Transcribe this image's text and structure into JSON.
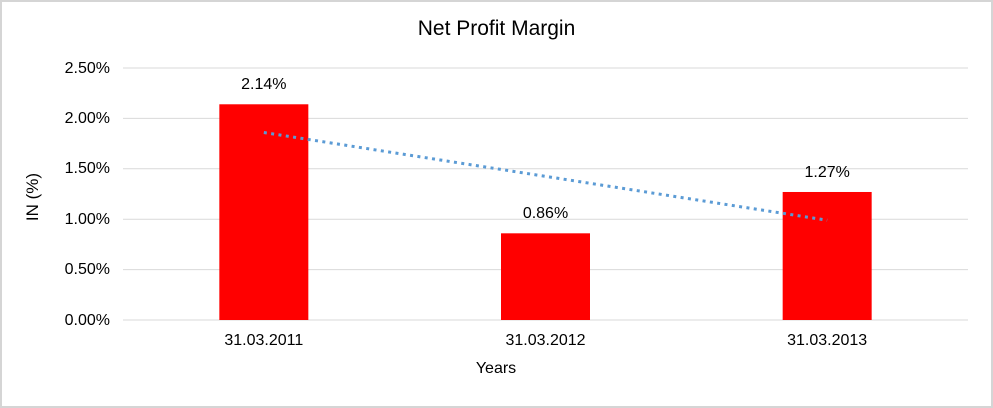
{
  "chart_data": {
    "type": "bar",
    "title": "Net Profit Margin",
    "xlabel": "Years",
    "ylabel": "IN (%)",
    "categories": [
      "31.03.2011",
      "31.03.2012",
      "31.03.2013"
    ],
    "values": [
      2.14,
      0.86,
      1.27
    ],
    "data_labels": [
      "2.14%",
      "0.86%",
      "1.27%"
    ],
    "ylim": [
      0,
      2.5
    ],
    "ytick_step": 0.5,
    "ytick_labels": [
      "0.00%",
      "0.50%",
      "1.00%",
      "1.50%",
      "2.00%",
      "2.50%"
    ],
    "grid": true,
    "legend": "none",
    "bar_color": "#ff0000",
    "grid_color": "#d9d9d9",
    "text_color": "#000000",
    "border_color": "#d5d5d5",
    "trendline": {
      "type": "linear",
      "style": "dotted",
      "color": "#5b9bd5",
      "start_value": 1.86,
      "end_value": 0.99
    }
  }
}
